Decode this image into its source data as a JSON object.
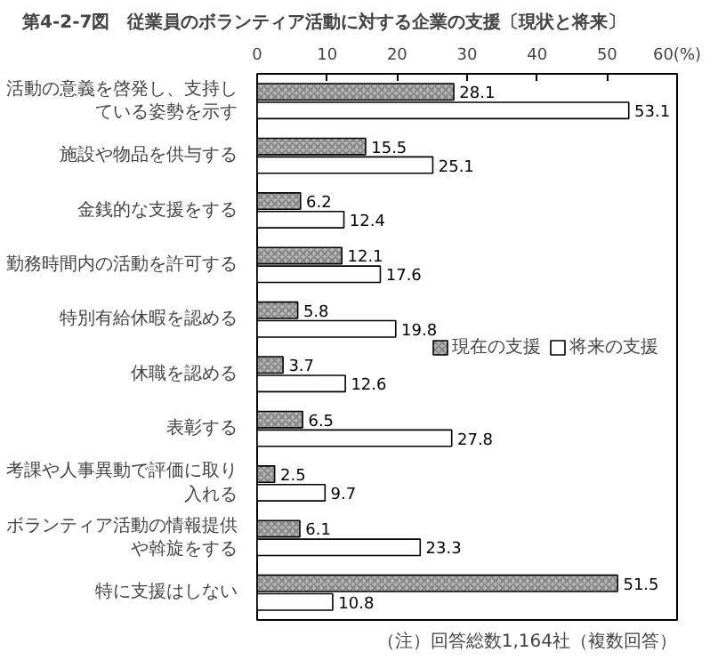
{
  "chart_data": {
    "type": "bar",
    "orientation": "horizontal",
    "title": "第4-2-7図　従業員のボランティア活動に対する企業の支援〔現状と将来〕",
    "categories": [
      "活動の意義を啓発し、支持している姿勢を示す",
      "施設や物品を供与する",
      "金銭的な支援をする",
      "勤務時間内の活動を許可する",
      "特別有給休暇を認める",
      "休職を認める",
      "表彰する",
      "考課や人事異動で評価に取り入れる",
      "ボランティア活動の情報提供や斡旋をする",
      "特に支援はしない"
    ],
    "series": [
      {
        "name": "現在の支援",
        "color": "#b4b4b4",
        "values": [
          28.1,
          15.5,
          6.2,
          12.1,
          5.8,
          3.7,
          6.5,
          2.5,
          6.1,
          51.5
        ]
      },
      {
        "name": "将来の支援",
        "color": "#ffffff",
        "values": [
          53.1,
          25.1,
          12.4,
          17.6,
          19.8,
          12.6,
          27.8,
          9.7,
          23.3,
          10.8
        ]
      }
    ],
    "xlim": [
      0,
      60
    ],
    "xticks": [
      0,
      10,
      20,
      30,
      40,
      50,
      {
        "value": 60,
        "label": "60(%)"
      }
    ],
    "data_labels": true,
    "legend": "right",
    "grid": false,
    "annotations": [
      "（注）回答総数1,164社（複数回答）"
    ]
  }
}
